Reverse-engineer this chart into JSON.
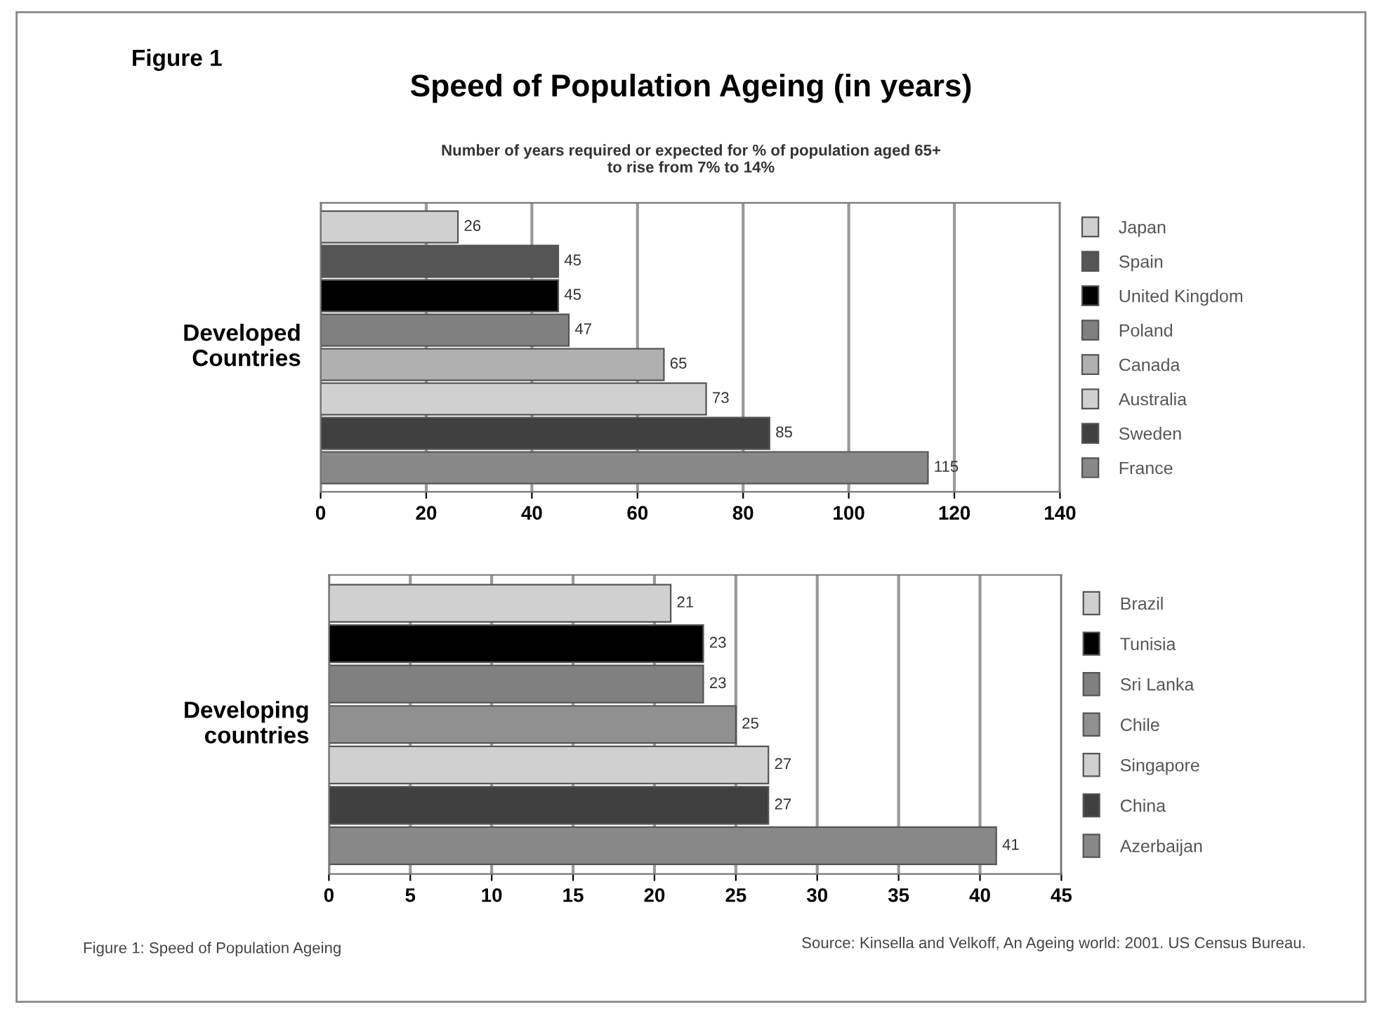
{
  "chart_data": [
    {
      "type": "bar",
      "orientation": "horizontal",
      "title": "Speed of Population Ageing (in years)",
      "subtitle": "Number of years required or expected for % of population aged 65+\nto rise from 7% to 14%",
      "ylabel": "Developed\nCountries",
      "categories": [
        "Japan",
        "Spain",
        "United Kingdom",
        "Poland",
        "Canada",
        "Australia",
        "Sweden",
        "France"
      ],
      "values": [
        26,
        45,
        45,
        47,
        65,
        73,
        85,
        115
      ],
      "colors": [
        "#d0d0d0",
        "#555555",
        "#000000",
        "#808080",
        "#b0b0b0",
        "#d0d0d0",
        "#404040",
        "#888888"
      ],
      "xlim": [
        0,
        140
      ],
      "xticks": [
        0,
        20,
        40,
        60,
        80,
        100,
        120,
        140
      ],
      "grid": "x",
      "data_labels": true,
      "annotations": [
        "Figure 1"
      ]
    },
    {
      "type": "bar",
      "orientation": "horizontal",
      "ylabel": "Developing\ncountries",
      "categories": [
        "Brazil",
        "Tunisia",
        "Sri Lanka",
        "Chile",
        "Singapore",
        "China",
        "Azerbaijan"
      ],
      "values": [
        21,
        23,
        23,
        25,
        27,
        27,
        41
      ],
      "colors": [
        "#d0d0d0",
        "#000000",
        "#808080",
        "#909090",
        "#d0d0d0",
        "#404040",
        "#888888"
      ],
      "xlim": [
        0,
        45
      ],
      "xticks": [
        0,
        5,
        10,
        15,
        20,
        25,
        30,
        35,
        40,
        45
      ],
      "grid": "x",
      "data_labels": true,
      "annotations": [
        "Figure 1: Speed of Population Ageing",
        "Source: Kinsella and Velkoff, An Ageing world: 2001. US Census Bureau."
      ]
    }
  ]
}
